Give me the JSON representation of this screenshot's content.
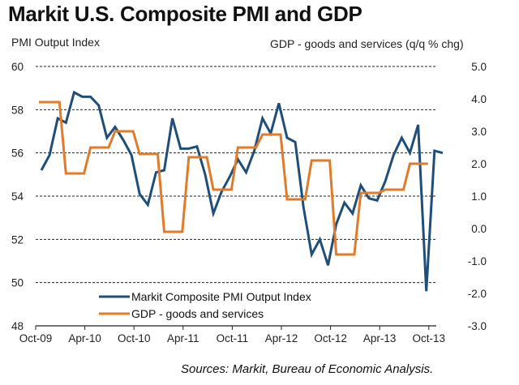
{
  "chart_data": {
    "type": "line",
    "title": "Markit U.S. Composite PMI and GDP",
    "ylabel_left": "PMI Output Index",
    "ylabel_right": "GDP - goods and services (q/q % chg)",
    "xlabel": "",
    "source": "Sources: Markit, Bureau of Economic Analysis.",
    "ylim_left": [
      48,
      60
    ],
    "ylim_right": [
      -3.0,
      5.0
    ],
    "yticks_left": [
      "60",
      "58",
      "56",
      "54",
      "52",
      "50",
      "48"
    ],
    "yticks_right": [
      "5.0",
      "4.0",
      "3.0",
      "2.0",
      "1.0",
      "0.0",
      "-1.0",
      "-2.0",
      "-3.0"
    ],
    "xticks": [
      "Oct-09",
      "Apr-10",
      "Oct-10",
      "Apr-11",
      "Oct-11",
      "Apr-12",
      "Oct-12",
      "Apr-13",
      "Oct-13"
    ],
    "grid": "horizontal-dashed",
    "legend_position": "bottom-left",
    "colors": {
      "pmi": "#1f4e79",
      "gdp": "#e07b2a"
    },
    "series": [
      {
        "name": "Markit Composite PMI Output Index",
        "axis": "left",
        "start": "Oct-09",
        "frequency": "monthly",
        "values": [
          55.2,
          55.9,
          57.6,
          57.4,
          58.8,
          58.6,
          58.6,
          58.2,
          56.7,
          57.2,
          56.6,
          55.9,
          54.1,
          53.6,
          55.1,
          55.2,
          57.6,
          56.2,
          56.2,
          56.3,
          55.0,
          53.2,
          54.2,
          54.9,
          55.7,
          55.1,
          56.1,
          57.6,
          56.9,
          58.3,
          56.7,
          56.5,
          53.5,
          51.3,
          52.0,
          50.8,
          52.7,
          53.7,
          53.2,
          54.5,
          53.9,
          53.8,
          54.7,
          55.9,
          56.7,
          56.0,
          57.3,
          49.6,
          56.1,
          56.0
        ]
      },
      {
        "name": "GDP - goods and services",
        "axis": "right",
        "start": "Oct-09",
        "frequency": "quarterly-step",
        "values": [
          3.9,
          1.7,
          2.5,
          3.0,
          2.3,
          -0.1,
          2.2,
          1.2,
          2.5,
          2.9,
          0.9,
          2.1,
          -0.8,
          1.1,
          1.2,
          2.0
        ]
      }
    ]
  }
}
